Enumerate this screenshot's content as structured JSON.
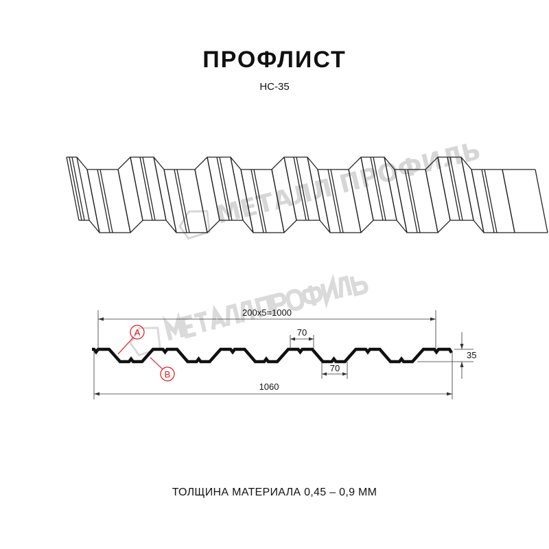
{
  "header": {
    "title": "ПРОФЛИСТ",
    "subtitle": "НС-35"
  },
  "watermark": {
    "text": "МЕТАЛЛ ПРОФИЛЬ"
  },
  "drawing": {
    "dimensions": {
      "pitch_total": "200x5=1000",
      "crest_width": "70",
      "trough_width": "70",
      "height": "35",
      "overall_width": "1060"
    },
    "callouts": {
      "a": "A",
      "b": "B"
    },
    "callout_color": "#e3171b",
    "line_color": "#111111"
  },
  "footer": {
    "thickness": "ТОЛЩИНА МАТЕРИАЛА 0,45 – 0,9 ММ"
  }
}
